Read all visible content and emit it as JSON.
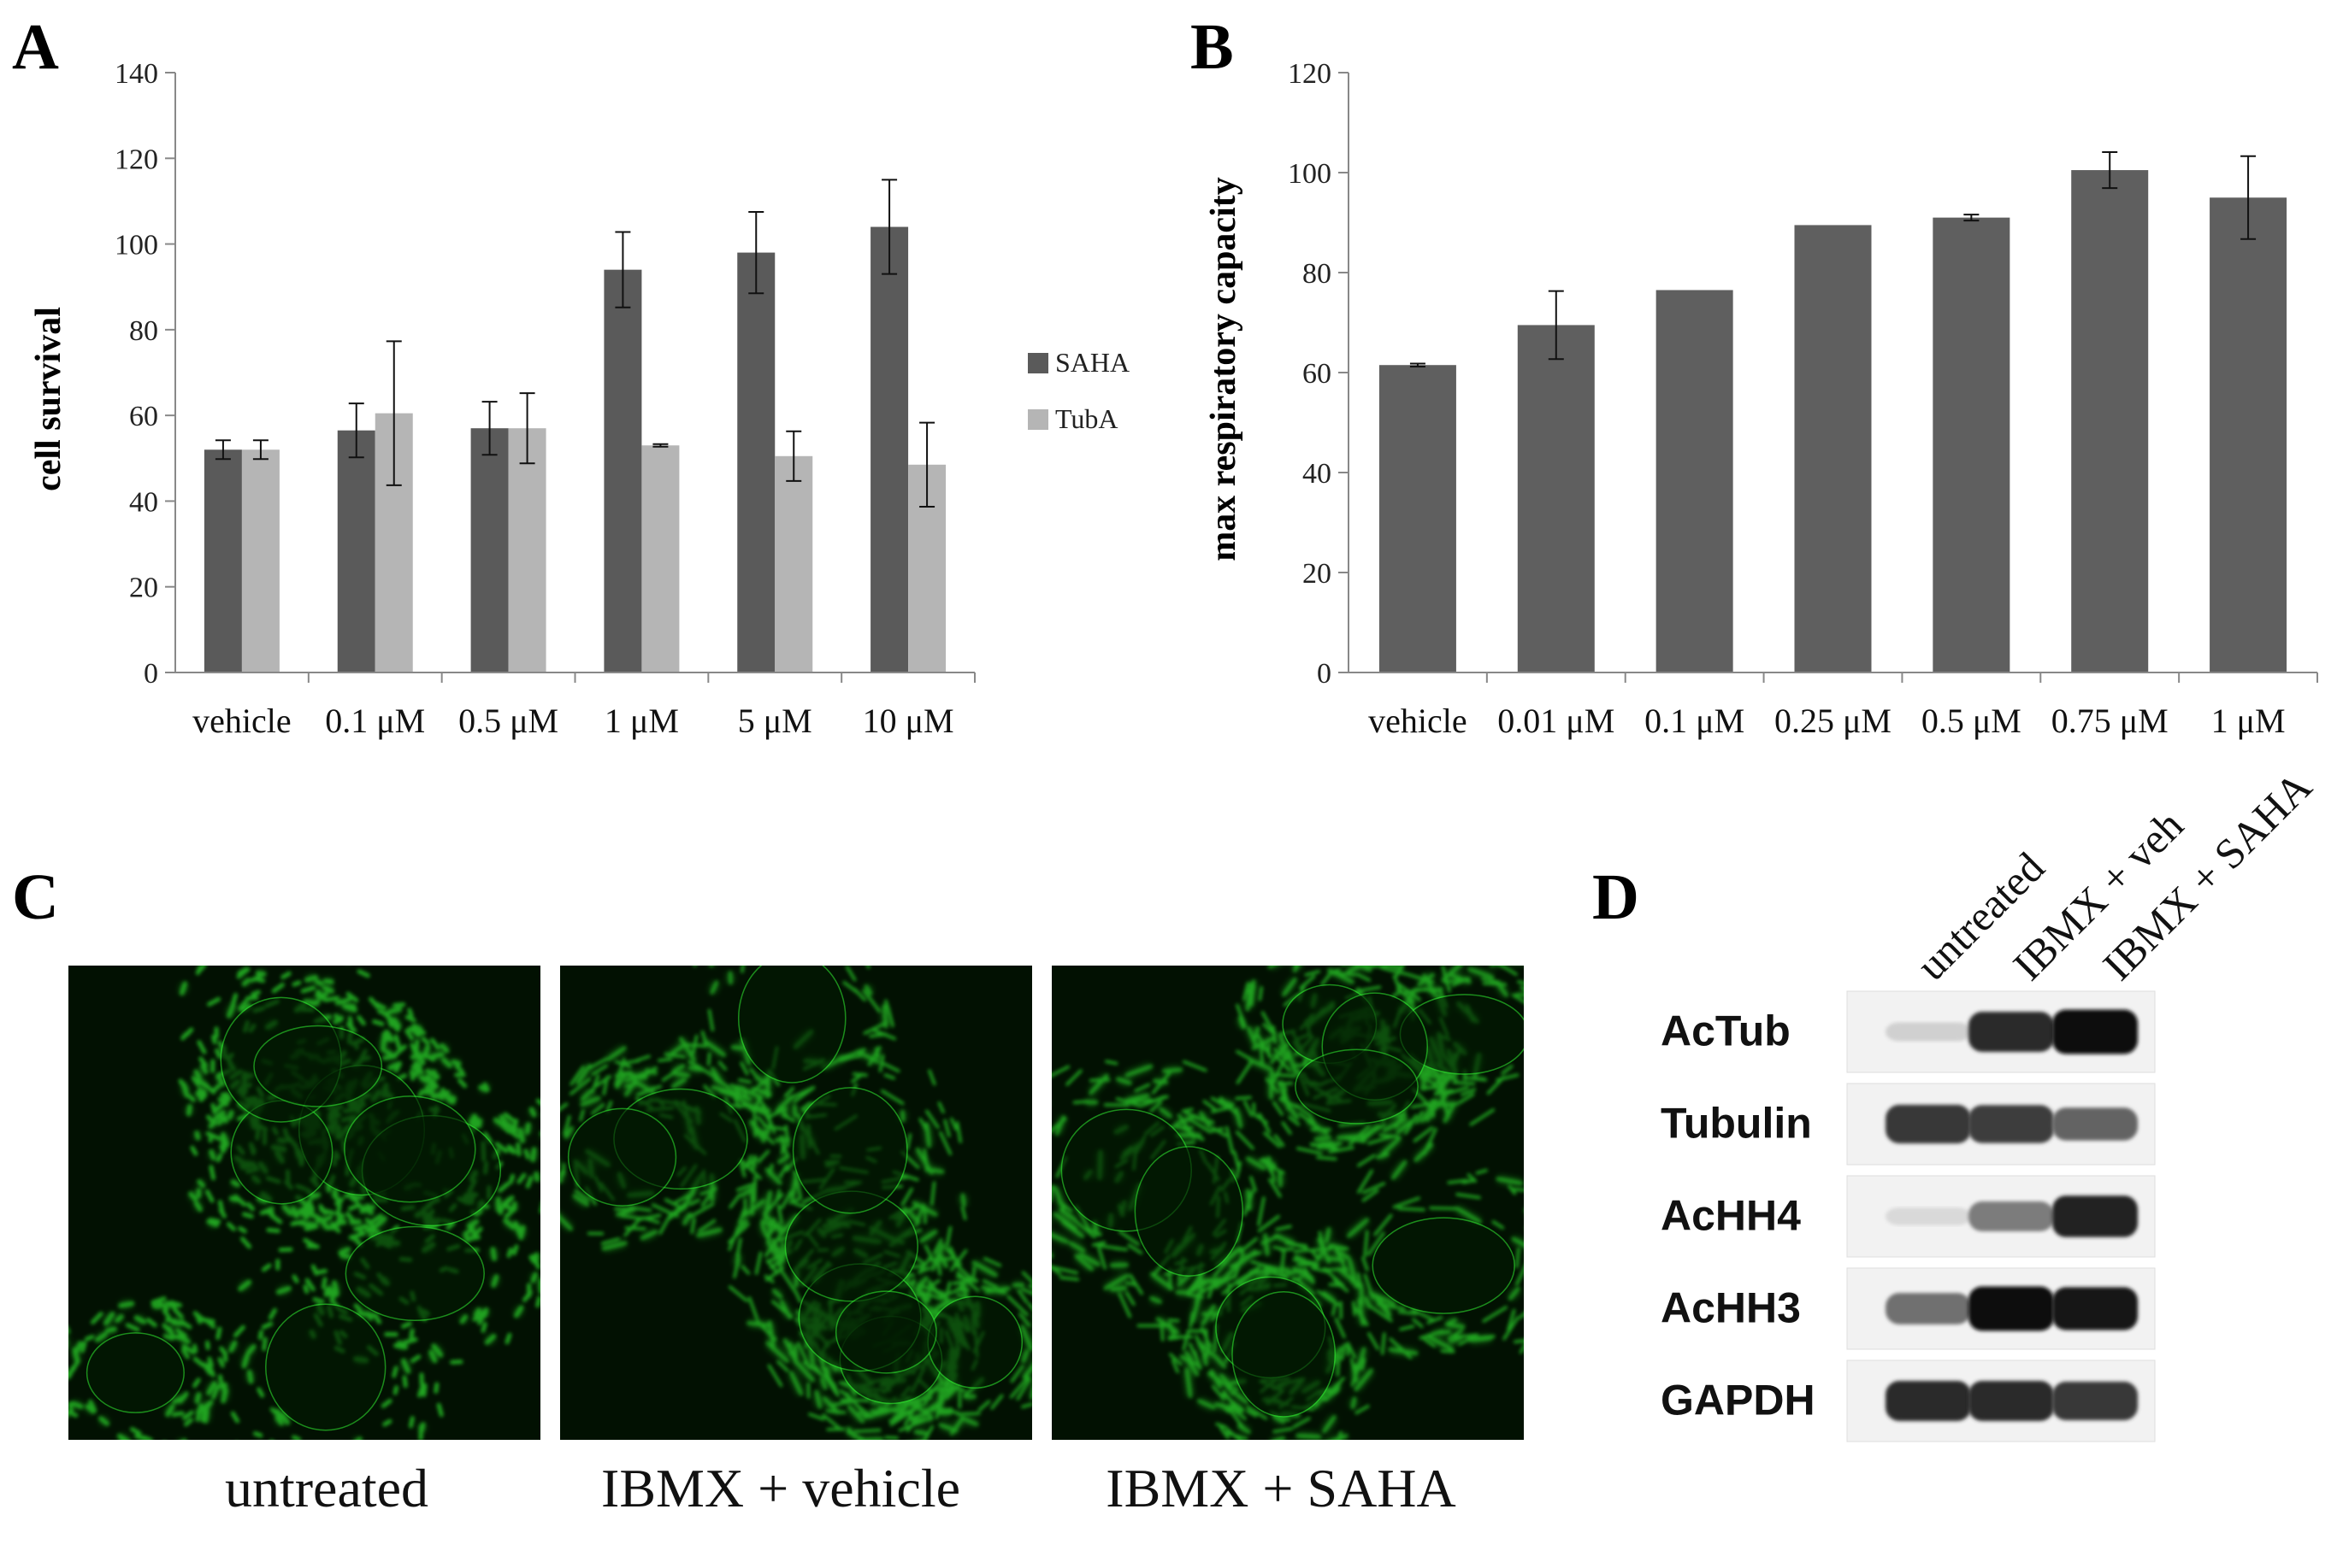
{
  "panels": {
    "a": {
      "letter": "A"
    },
    "b": {
      "letter": "B"
    },
    "c": {
      "letter": "C"
    },
    "d": {
      "letter": "D"
    }
  },
  "chart_data": [
    {
      "type": "bar",
      "ylabel": "cell survival",
      "ylim": [
        0,
        140
      ],
      "yticks": [
        "0",
        "20",
        "40",
        "60",
        "80",
        "100",
        "120",
        "140"
      ],
      "categories": [
        "vehicle",
        "0.1 μM",
        "0.5 μM",
        "1 μM",
        "5 μM",
        "10 μM"
      ],
      "series": [
        {
          "name": "SAHA",
          "color": "#5a5a5a",
          "values": [
            52,
            56.5,
            57,
            94,
            98,
            104
          ],
          "errors": [
            2.2,
            6.3,
            6.2,
            8.8,
            9.5,
            11
          ]
        },
        {
          "name": "TubA",
          "color": "#b5b5b5",
          "values": [
            52,
            60.5,
            57,
            53,
            50.5,
            48.5
          ],
          "errors": [
            2.2,
            16.8,
            8.2,
            0.3,
            5.8,
            9.8
          ]
        }
      ],
      "legend": "right"
    },
    {
      "type": "bar",
      "ylabel": "max respiratory capacity",
      "ylim": [
        0,
        120
      ],
      "yticks": [
        "0",
        "20",
        "40",
        "60",
        "80",
        "100",
        "120"
      ],
      "categories": [
        "vehicle",
        "0.01 μM",
        "0.1 μM",
        "0.25 μM",
        "0.5 μM",
        "0.75 μM",
        "1 μM"
      ],
      "series": [
        {
          "color": "#5f5f5f",
          "values": [
            61.5,
            69.5,
            76.5,
            89.5,
            91,
            100.5,
            95
          ],
          "errors": [
            0.3,
            6.8,
            0,
            0,
            0.6,
            3.6,
            8.3
          ]
        }
      ]
    }
  ],
  "microscopy": {
    "captions": [
      "untreated",
      "IBMX + vehicle",
      "IBMX + SAHA"
    ],
    "color": "#2ee02e"
  },
  "western_blot": {
    "lanes": [
      "untreated",
      "IBMX + veh",
      "IBMX + SAHA"
    ],
    "rows": [
      {
        "label": "AcTub",
        "intensities": [
          0.12,
          0.85,
          1.0
        ]
      },
      {
        "label": "Tubulin",
        "intensities": [
          0.8,
          0.78,
          0.6
        ]
      },
      {
        "label": "AcHH4",
        "intensities": [
          0.08,
          0.5,
          0.9
        ]
      },
      {
        "label": "AcHH3",
        "intensities": [
          0.55,
          1.0,
          0.95
        ]
      },
      {
        "label": "GAPDH",
        "intensities": [
          0.85,
          0.85,
          0.8
        ]
      }
    ]
  }
}
